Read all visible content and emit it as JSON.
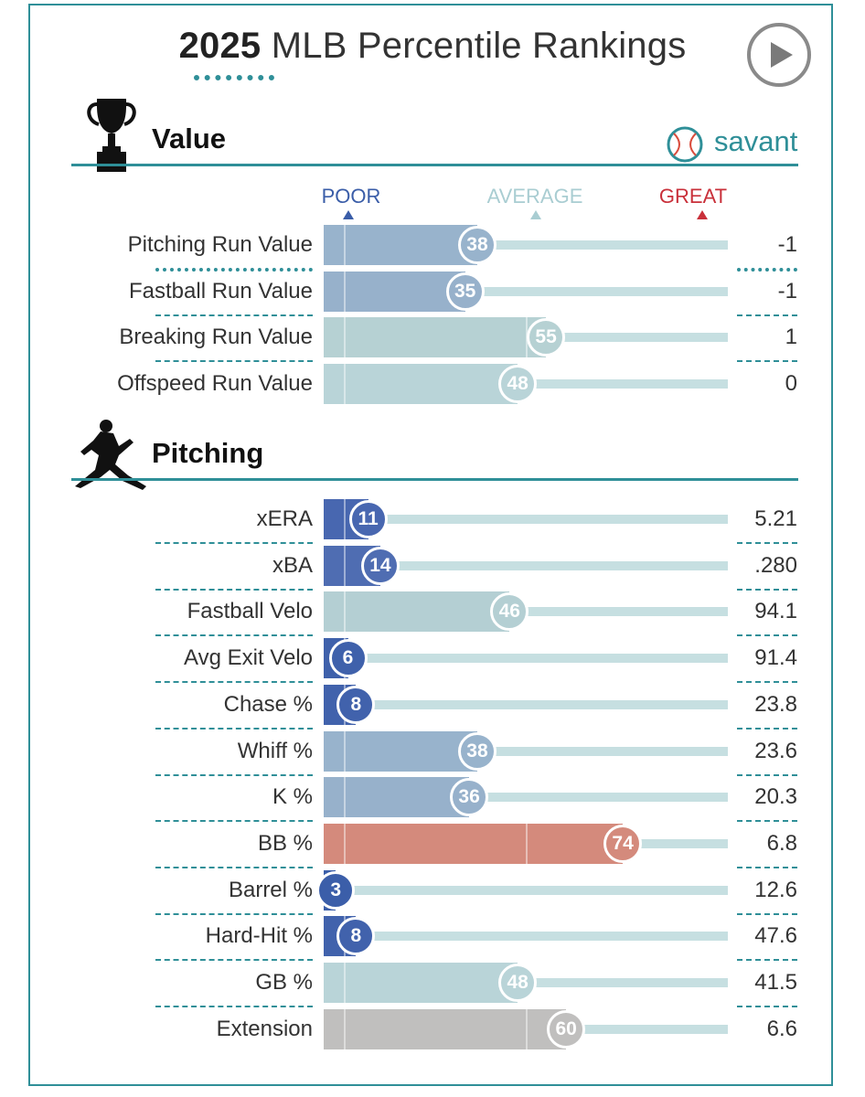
{
  "title": {
    "year": "2025",
    "rest": "MLB Percentile Rankings"
  },
  "brand": "savant",
  "scale": {
    "poor": "POOR",
    "average": "AVERAGE",
    "great": "GREAT"
  },
  "colors": {
    "teal": "#2f8f98",
    "poor_label": "#3a5da8",
    "average_label": "#a9cdd2",
    "great_label": "#c9303a",
    "track": "#c6dfe1"
  },
  "sections": [
    {
      "title": "Value",
      "icon": "trophy-icon"
    },
    {
      "title": "Pitching",
      "icon": "pitcher-icon"
    }
  ],
  "chart_data": [
    {
      "type": "bar",
      "title": "Value",
      "xlim": [
        0,
        100
      ],
      "categories": [
        "Pitching Run Value",
        "Fastball Run Value",
        "Breaking Run Value",
        "Offspeed Run Value"
      ],
      "percentiles": [
        38,
        35,
        55,
        48
      ],
      "values": [
        "-1",
        "-1",
        "1",
        "0"
      ],
      "bar_colors": [
        "#98b3cc",
        "#97b1cb",
        "#b6d1d3",
        "#b9d4d8"
      ]
    },
    {
      "type": "bar",
      "title": "Pitching",
      "xlim": [
        0,
        100
      ],
      "categories": [
        "xERA",
        "xBA",
        "Fastball Velo",
        "Avg Exit Velo",
        "Chase %",
        "Whiff %",
        "K %",
        "BB %",
        "Barrel %",
        "Hard-Hit %",
        "GB %",
        "Extension"
      ],
      "percentiles": [
        11,
        14,
        46,
        6,
        8,
        38,
        36,
        74,
        3,
        8,
        48,
        60
      ],
      "values": [
        "5.21",
        ".280",
        "94.1",
        "91.4",
        "23.8",
        "23.6",
        "20.3",
        "6.8",
        "12.6",
        "47.6",
        "41.5",
        "6.6"
      ],
      "bar_colors": [
        "#4867b0",
        "#4f6db2",
        "#b4cfd3",
        "#3f61ab",
        "#4162ac",
        "#98b3cc",
        "#97b1cb",
        "#d48a7c",
        "#3b5ea9",
        "#4162ac",
        "#b9d4d8",
        "#c0bfbe"
      ]
    }
  ]
}
